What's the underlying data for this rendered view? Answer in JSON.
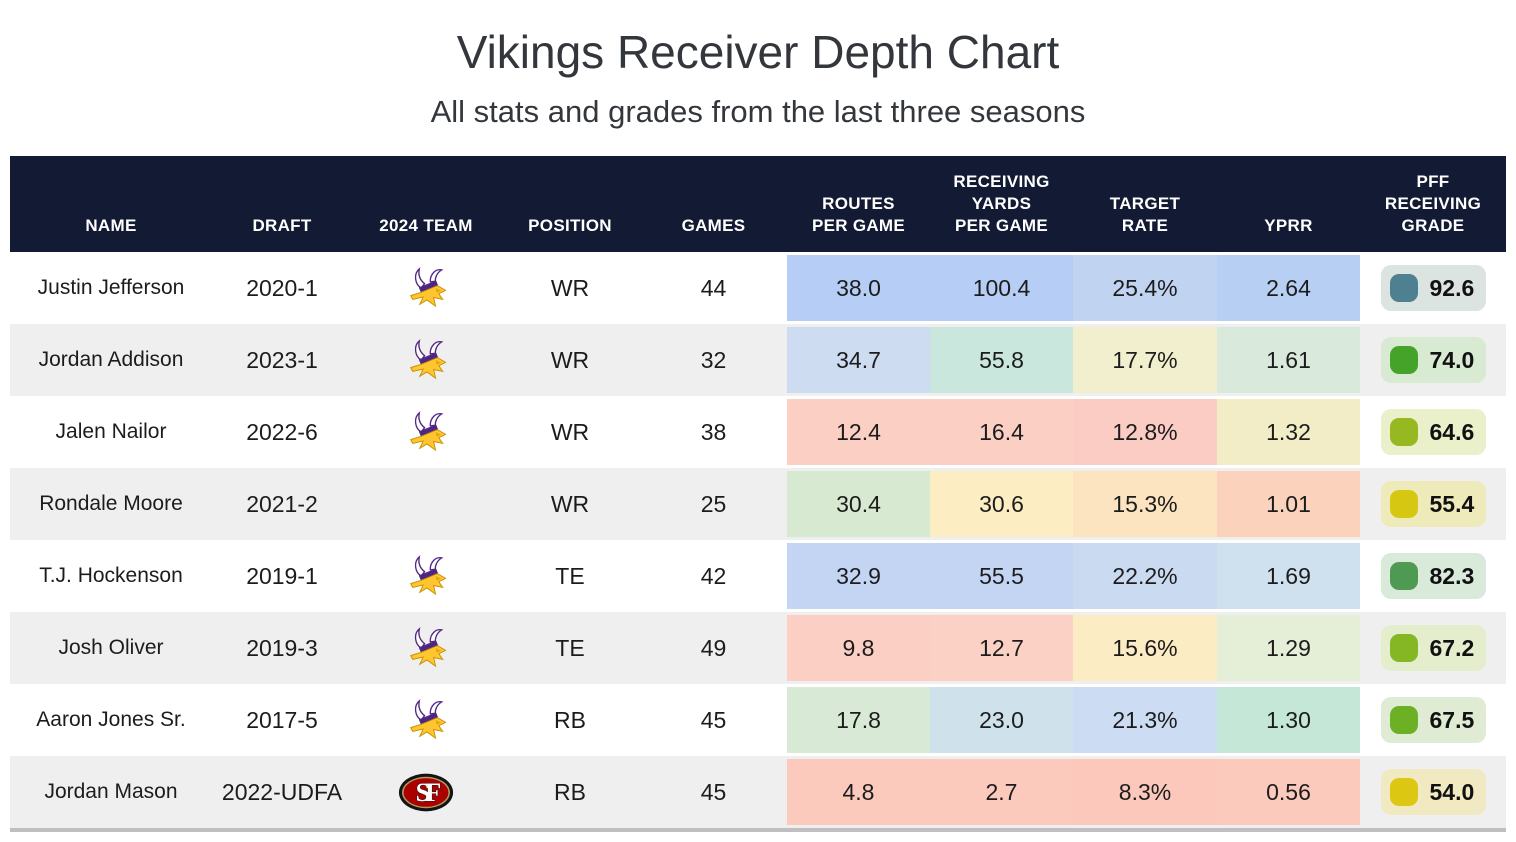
{
  "page": {
    "title": "Vikings Receiver Depth Chart",
    "subtitle": "All stats and grades from the last three seasons"
  },
  "theme": {
    "header_bg": "#131a33",
    "header_text": "#ffffff",
    "row_alt_bg": "#efefef",
    "bottom_border": "#bfbfbf",
    "vikings_purple": "#4f2683",
    "vikings_gold": "#ffc62f",
    "niners_red": "#aa0000",
    "niners_gold": "#b3995d"
  },
  "chart_data": {
    "type": "table",
    "title": "Vikings Receiver Depth Chart",
    "subtitle": "All stats and grades from the last three seasons",
    "columns": [
      {
        "key": "name",
        "label": "NAME"
      },
      {
        "key": "draft",
        "label": "DRAFT"
      },
      {
        "key": "team",
        "label": "2024 TEAM"
      },
      {
        "key": "position",
        "label": "POSITION"
      },
      {
        "key": "games",
        "label": "GAMES"
      },
      {
        "key": "routes_per_game",
        "label": "ROUTES\nPER GAME"
      },
      {
        "key": "receiving_yards_per_game",
        "label": "RECEIVING\nYARDS\nPER GAME"
      },
      {
        "key": "target_rate",
        "label": "TARGET\nRATE"
      },
      {
        "key": "yprr",
        "label": "YPRR"
      },
      {
        "key": "pff_receiving_grade",
        "label": "PFF\nRECEIVING\nGRADE"
      }
    ],
    "rows": [
      {
        "name": "Justin Jefferson",
        "draft": "2020-1",
        "team": "vikings",
        "team_icon": "vikings-logo",
        "position": "WR",
        "games": "44",
        "stats": [
          {
            "value": "38.0",
            "bg": "#b6cdf5"
          },
          {
            "value": "100.4",
            "bg": "#b6cdf5"
          },
          {
            "value": "25.4%",
            "bg": "#c0d3f1"
          },
          {
            "value": "2.64",
            "bg": "#b8cff4"
          }
        ],
        "grade": {
          "value": "92.6",
          "chip": "#4d8090",
          "bg": "#dce4e2"
        }
      },
      {
        "name": "Jordan Addison",
        "draft": "2023-1",
        "team": "vikings",
        "team_icon": "vikings-logo",
        "position": "WR",
        "games": "32",
        "stats": [
          {
            "value": "34.7",
            "bg": "#cddcf0"
          },
          {
            "value": "55.8",
            "bg": "#c9e7dc"
          },
          {
            "value": "17.7%",
            "bg": "#f2efce"
          },
          {
            "value": "1.61",
            "bg": "#d9e9dc"
          }
        ],
        "grade": {
          "value": "74.0",
          "chip": "#45a329",
          "bg": "#d9ead2"
        }
      },
      {
        "name": "Jalen Nailor",
        "draft": "2022-6",
        "team": "vikings",
        "team_icon": "vikings-logo",
        "position": "WR",
        "games": "38",
        "stats": [
          {
            "value": "12.4",
            "bg": "#fbcfc3"
          },
          {
            "value": "16.4",
            "bg": "#fbcfc3"
          },
          {
            "value": "12.8%",
            "bg": "#fbccc3"
          },
          {
            "value": "1.32",
            "bg": "#f2edc6"
          }
        ],
        "grade": {
          "value": "64.6",
          "chip": "#96b821",
          "bg": "#e9f0ca"
        }
      },
      {
        "name": "Rondale Moore",
        "draft": "2021-2",
        "team": "",
        "team_icon": "",
        "position": "WR",
        "games": "25",
        "stats": [
          {
            "value": "30.4",
            "bg": "#d7e9d1"
          },
          {
            "value": "30.6",
            "bg": "#fdedc2"
          },
          {
            "value": "15.3%",
            "bg": "#fce4c1"
          },
          {
            "value": "1.01",
            "bg": "#fbd3bd"
          }
        ],
        "grade": {
          "value": "55.4",
          "chip": "#d5c712",
          "bg": "#eeeaba"
        }
      },
      {
        "name": "T.J. Hockenson",
        "draft": "2019-1",
        "team": "vikings",
        "team_icon": "vikings-logo",
        "position": "TE",
        "games": "42",
        "stats": [
          {
            "value": "32.9",
            "bg": "#c4d4f3"
          },
          {
            "value": "55.5",
            "bg": "#c4d4f3"
          },
          {
            "value": "22.2%",
            "bg": "#c9daf1"
          },
          {
            "value": "1.69",
            "bg": "#cfe0ee"
          }
        ],
        "grade": {
          "value": "82.3",
          "chip": "#4f9a52",
          "bg": "#d9eadb"
        }
      },
      {
        "name": "Josh Oliver",
        "draft": "2019-3",
        "team": "vikings",
        "team_icon": "vikings-logo",
        "position": "TE",
        "games": "49",
        "stats": [
          {
            "value": "9.8",
            "bg": "#fbcfc3"
          },
          {
            "value": "12.7",
            "bg": "#fbd1c5"
          },
          {
            "value": "15.6%",
            "bg": "#fcecc4"
          },
          {
            "value": "1.29",
            "bg": "#e5eed7"
          }
        ],
        "grade": {
          "value": "67.2",
          "chip": "#84b723",
          "bg": "#e4eecd"
        }
      },
      {
        "name": "Aaron Jones Sr.",
        "draft": "2017-5",
        "team": "vikings",
        "team_icon": "vikings-logo",
        "position": "RB",
        "games": "45",
        "stats": [
          {
            "value": "17.8",
            "bg": "#d8ead6"
          },
          {
            "value": "23.0",
            "bg": "#cfe2ec"
          },
          {
            "value": "21.3%",
            "bg": "#ccdcf2"
          },
          {
            "value": "1.30",
            "bg": "#c5e7d8"
          }
        ],
        "grade": {
          "value": "67.5",
          "chip": "#6cb125",
          "bg": "#dfecd3"
        }
      },
      {
        "name": "Jordan Mason",
        "draft": "2022-UDFA",
        "team": "49ers",
        "team_icon": "49ers-logo",
        "position": "RB",
        "games": "45",
        "stats": [
          {
            "value": "4.8",
            "bg": "#fcc9bd"
          },
          {
            "value": "2.7",
            "bg": "#fcc9bd"
          },
          {
            "value": "8.3%",
            "bg": "#fcc8bc"
          },
          {
            "value": "0.56",
            "bg": "#fcc9bd"
          }
        ],
        "grade": {
          "value": "54.0",
          "chip": "#dcc813",
          "bg": "#f0e9c2"
        }
      }
    ]
  }
}
